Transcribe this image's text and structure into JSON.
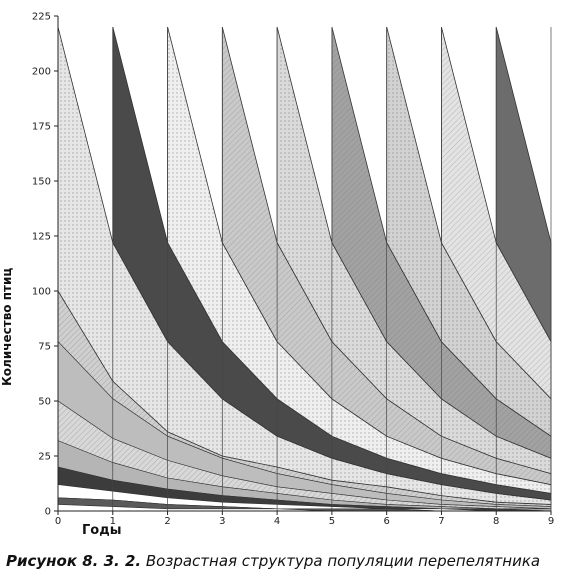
{
  "chart_data": {
    "type": "area",
    "title": "",
    "xlabel": "Годы",
    "ylabel": "Количество птиц",
    "xlim": [
      0,
      9
    ],
    "ylim": [
      0,
      225
    ],
    "x_ticks": [
      0,
      1,
      2,
      3,
      4,
      5,
      6,
      7,
      8,
      9
    ],
    "y_ticks": [
      0,
      25,
      50,
      75,
      100,
      125,
      150,
      175,
      200,
      225
    ],
    "grid": false,
    "legend": "none",
    "annual_recruitment": 100,
    "bands": [
      {
        "start_year": -1,
        "x": [
          0,
          1,
          2,
          3,
          4,
          5,
          6,
          7,
          8,
          9
        ],
        "lower": [
          100,
          59,
          36,
          25,
          20,
          14,
          11,
          7,
          4,
          3
        ],
        "upper": [
          220,
          122,
          77,
          51,
          34,
          24,
          17,
          12,
          8,
          5
        ]
      },
      {
        "start_year": 1,
        "x": [
          1,
          2,
          3,
          4,
          5,
          6,
          7,
          8,
          9
        ],
        "lower": [
          122,
          77,
          51,
          34,
          24,
          17,
          12,
          8,
          5
        ],
        "upper": [
          220,
          122,
          77,
          51,
          34,
          24,
          17,
          12,
          8
        ]
      },
      {
        "start_year": 2,
        "x": [
          2,
          3,
          4,
          5,
          6,
          7,
          8,
          9
        ],
        "lower": [
          122,
          77,
          51,
          34,
          24,
          17,
          12,
          8
        ],
        "upper": [
          220,
          122,
          77,
          51,
          34,
          24,
          17,
          12
        ]
      },
      {
        "start_year": 3,
        "x": [
          3,
          4,
          5,
          6,
          7,
          8,
          9
        ],
        "lower": [
          122,
          77,
          51,
          34,
          24,
          17,
          12
        ],
        "upper": [
          220,
          122,
          77,
          51,
          34,
          24,
          17
        ]
      },
      {
        "start_year": 4,
        "x": [
          4,
          5,
          6,
          7,
          8,
          9
        ],
        "lower": [
          122,
          77,
          51,
          34,
          24,
          17
        ],
        "upper": [
          220,
          122,
          77,
          51,
          34,
          24
        ]
      },
      {
        "start_year": 5,
        "x": [
          5,
          6,
          7,
          8,
          9
        ],
        "lower": [
          122,
          77,
          51,
          34,
          24
        ],
        "upper": [
          220,
          122,
          77,
          51,
          34
        ]
      },
      {
        "start_year": 6,
        "x": [
          6,
          7,
          8,
          9
        ],
        "lower": [
          122,
          77,
          51,
          34
        ],
        "upper": [
          220,
          122,
          77,
          51
        ]
      },
      {
        "start_year": 7,
        "x": [
          7,
          8,
          9
        ],
        "lower": [
          122,
          77,
          51
        ],
        "upper": [
          220,
          122,
          77
        ]
      },
      {
        "start_year": 8,
        "x": [
          8,
          9
        ],
        "lower": [
          122,
          77
        ],
        "upper": [
          220,
          122
        ]
      }
    ],
    "band_colors": [
      "#e6e6e6",
      "#4a4a4a",
      "#efefef",
      "#c9c9c9",
      "#dadada",
      "#a2a2a2",
      "#d2d2d2",
      "#e3e3e3",
      "#6c6c6c"
    ],
    "old_cohorts": {
      "x": [
        0,
        1,
        2,
        3,
        4,
        5,
        6,
        7,
        8,
        9
      ],
      "boundaries": [
        [
          77,
          51,
          34,
          24,
          17,
          12,
          8,
          5,
          3,
          2
        ],
        [
          50,
          33,
          23,
          16,
          11,
          8,
          5,
          3,
          2,
          1
        ],
        [
          32,
          22,
          15,
          11,
          8,
          5,
          3,
          2,
          1,
          1
        ],
        [
          20,
          14,
          10,
          7,
          5,
          3,
          2,
          1,
          1,
          0
        ],
        [
          12,
          9,
          6,
          4,
          3,
          2,
          1,
          1,
          0,
          0
        ],
        [
          6,
          5,
          3,
          2,
          1,
          1,
          1,
          0,
          0,
          0
        ],
        [
          3,
          2,
          1,
          1,
          1,
          0,
          0,
          0,
          0,
          0
        ]
      ],
      "fills": [
        "#cfcfcf",
        "#bdbdbd",
        "#d8d8d8",
        "#b5b5b5",
        "#3c3c3c",
        "#ffffff",
        "#5a5a5a"
      ]
    }
  },
  "caption": {
    "prefix": "Рисунок 8. 3. 2.",
    "text": " Возрастная структура популяции перепелятника"
  }
}
